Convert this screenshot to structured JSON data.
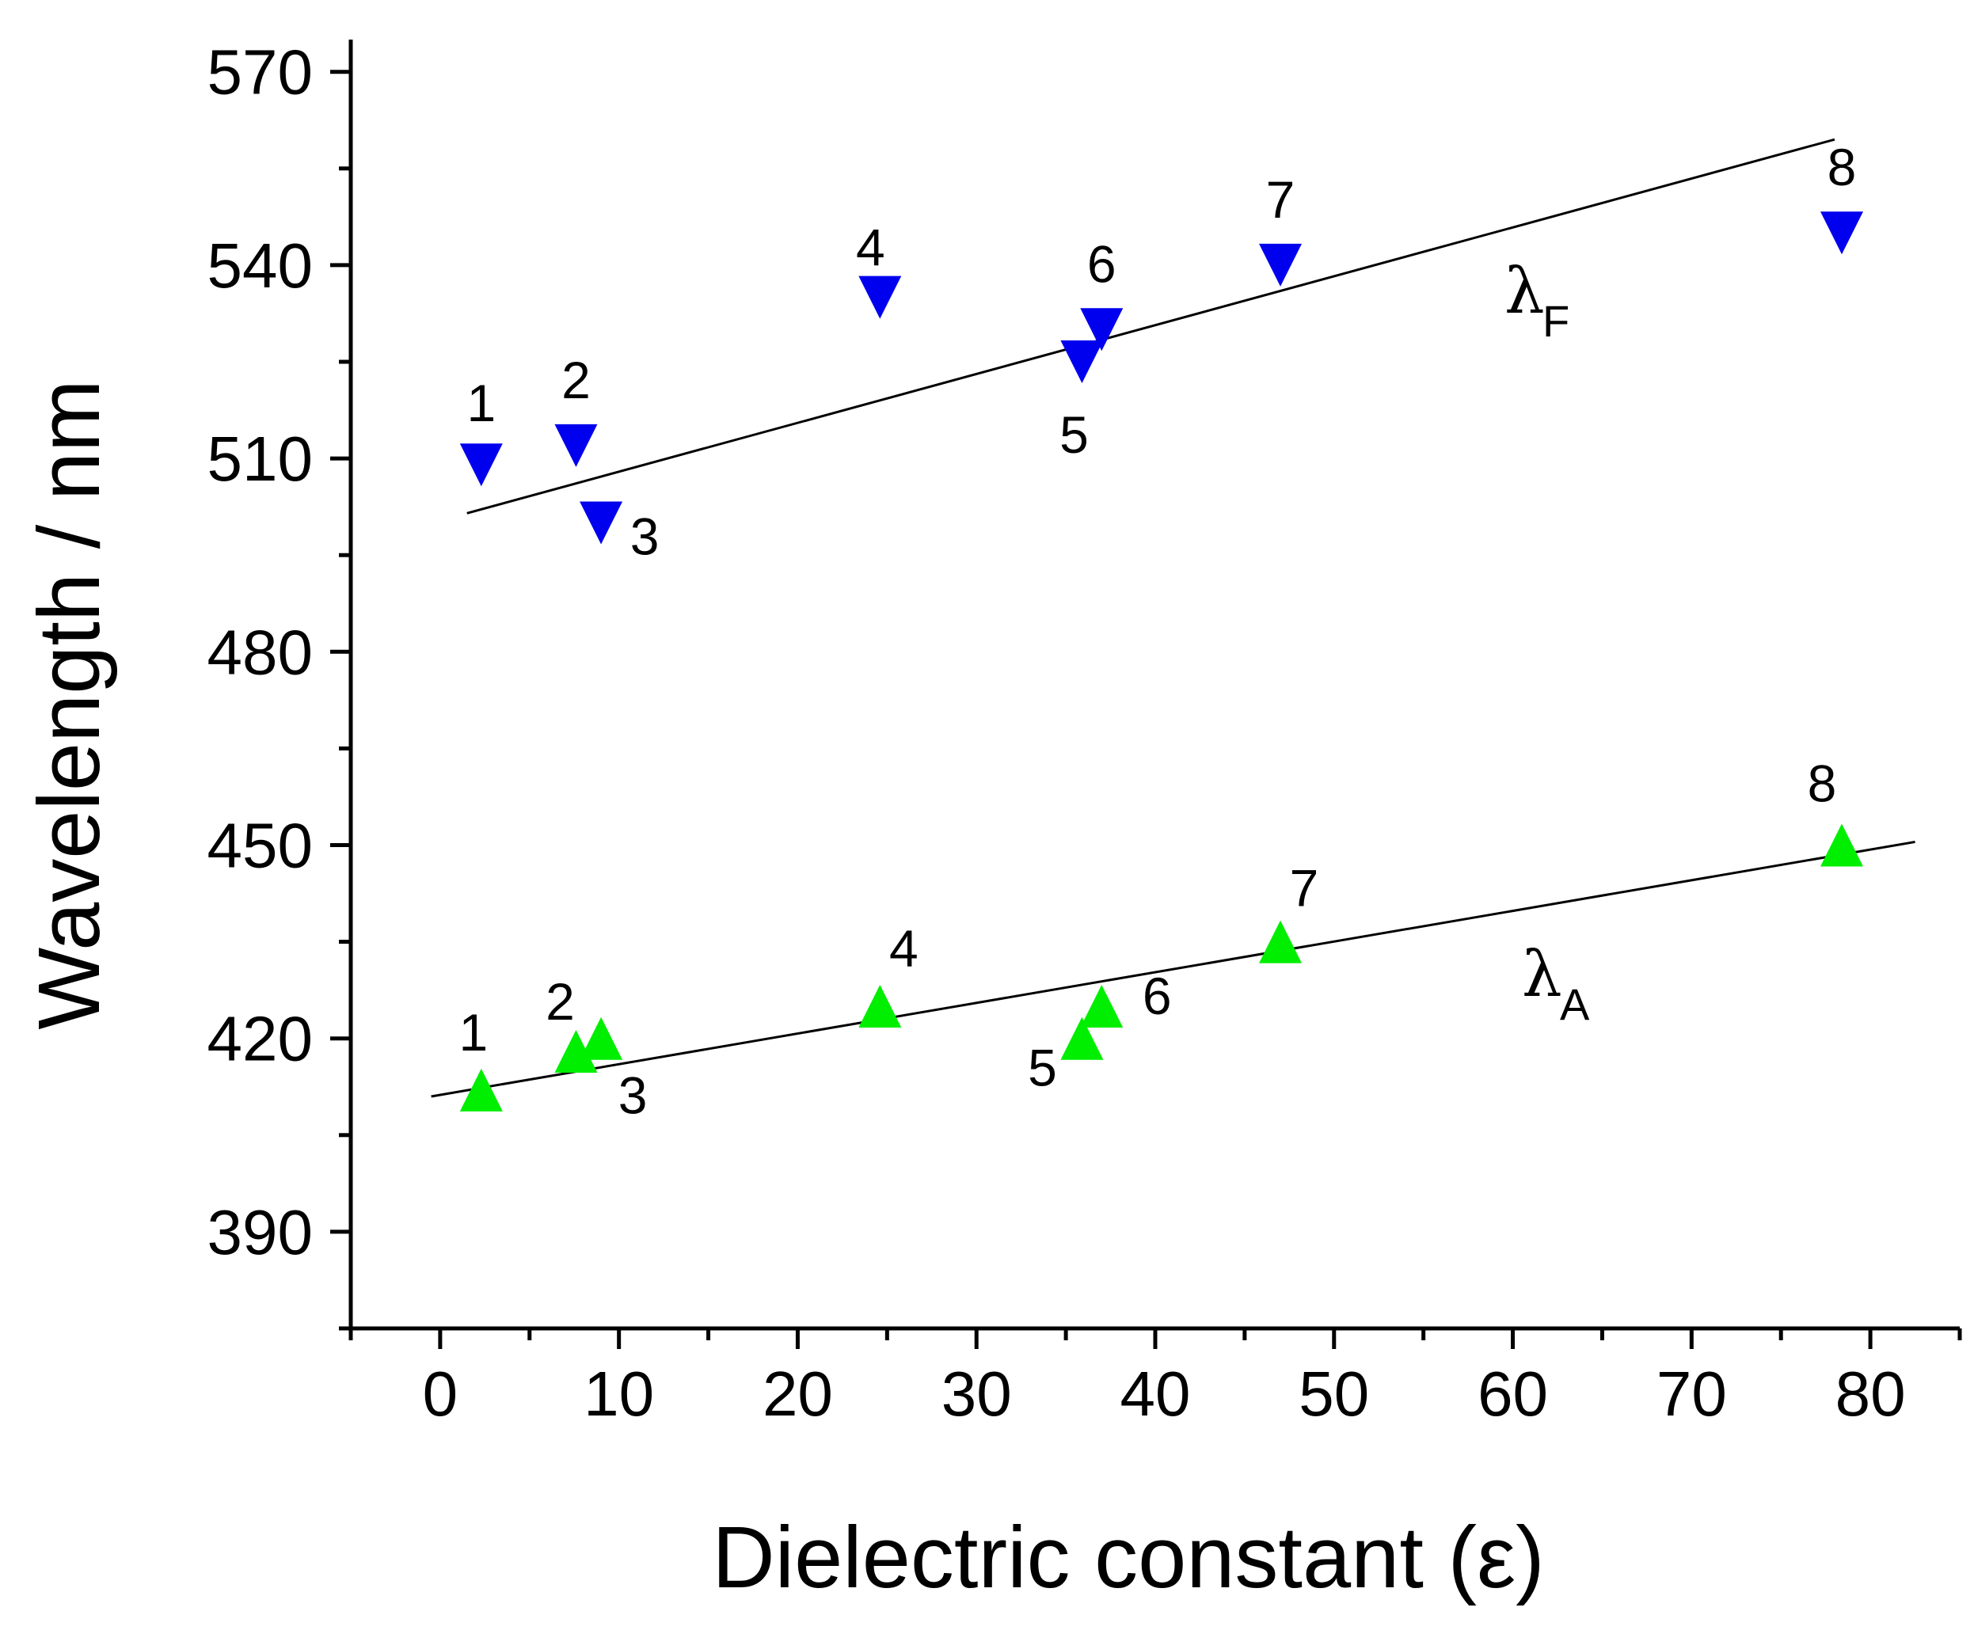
{
  "chart_data": {
    "type": "scatter",
    "xlabel": "Dielectric constant (ε)",
    "ylabel": "Wavelength / nm",
    "xlim": [
      -5,
      85
    ],
    "ylim": [
      375,
      575
    ],
    "xticks": [
      0,
      10,
      20,
      30,
      40,
      50,
      60,
      70,
      80
    ],
    "yticks": [
      390,
      420,
      450,
      480,
      510,
      540,
      570
    ],
    "grid": false,
    "series": [
      {
        "name": "λF",
        "label_main": "λ",
        "label_sub": "F",
        "marker": "triangle-down",
        "color": "#0000ee",
        "points": [
          {
            "label": "1",
            "x": 2.3,
            "y": 509
          },
          {
            "label": "2",
            "x": 7.6,
            "y": 512
          },
          {
            "label": "3",
            "x": 9.0,
            "y": 500
          },
          {
            "label": "4",
            "x": 24.6,
            "y": 535
          },
          {
            "label": "5",
            "x": 35.9,
            "y": 525
          },
          {
            "label": "6",
            "x": 37.0,
            "y": 530
          },
          {
            "label": "7",
            "x": 47.0,
            "y": 540
          },
          {
            "label": "8",
            "x": 78.4,
            "y": 545
          }
        ],
        "fit": {
          "x": [
            1.5,
            78.0
          ],
          "y": [
            501.5,
            559.5
          ]
        }
      },
      {
        "name": "λA",
        "label_main": "λ",
        "label_sub": "A",
        "marker": "triangle-up",
        "color": "#00ee00",
        "points": [
          {
            "label": "1",
            "x": 2.3,
            "y": 412
          },
          {
            "label": "2",
            "x": 7.6,
            "y": 418
          },
          {
            "label": "3",
            "x": 9.0,
            "y": 420
          },
          {
            "label": "4",
            "x": 24.6,
            "y": 425
          },
          {
            "label": "5",
            "x": 35.9,
            "y": 420
          },
          {
            "label": "6",
            "x": 37.0,
            "y": 425
          },
          {
            "label": "7",
            "x": 47.0,
            "y": 435
          },
          {
            "label": "8",
            "x": 78.4,
            "y": 450
          }
        ],
        "fit": {
          "x": [
            -0.5,
            82.5
          ],
          "y": [
            411.0,
            450.5
          ]
        }
      }
    ]
  }
}
